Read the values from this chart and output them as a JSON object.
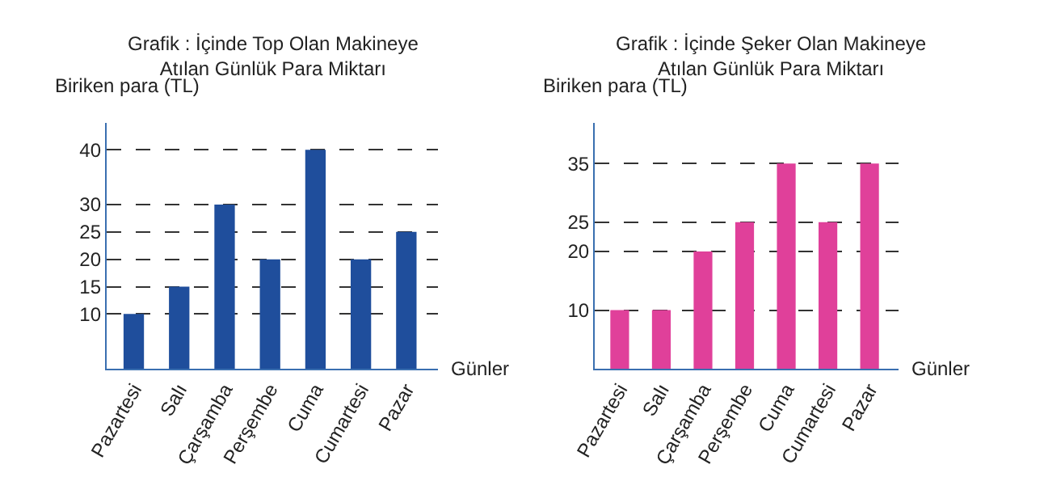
{
  "chart_data": [
    {
      "type": "bar",
      "title": "Grafik : İçinde Top Olan Makineye Atılan Günlük Para Miktarı",
      "ylabel": "Biriken para (TL)",
      "xlabel": "Günler",
      "categories": [
        "Pazartesi",
        "Salı",
        "Çarşamba",
        "Perşembe",
        "Cuma",
        "Cumartesi",
        "Pazar"
      ],
      "values": [
        10,
        15,
        30,
        20,
        40,
        20,
        25
      ],
      "color": "#1f4e9c",
      "ylim": [
        0,
        45
      ],
      "yticks": [
        10,
        15,
        20,
        25,
        30,
        40
      ],
      "grid": "y"
    },
    {
      "type": "bar",
      "title": "Grafik : İçinde Şeker Olan Makineye Atılan Günlük Para Miktarı",
      "ylabel": "Biriken para (TL)",
      "xlabel": "Günler",
      "categories": [
        "Pazartesi",
        "Salı",
        "Çarşamba",
        "Perşembe",
        "Cuma",
        "Cumartesi",
        "Pazar"
      ],
      "values": [
        10,
        10,
        20,
        25,
        35,
        25,
        35
      ],
      "color": "#e0409a",
      "ylim": [
        0,
        42
      ],
      "yticks": [
        10,
        20,
        25,
        35
      ],
      "grid": "y"
    }
  ]
}
